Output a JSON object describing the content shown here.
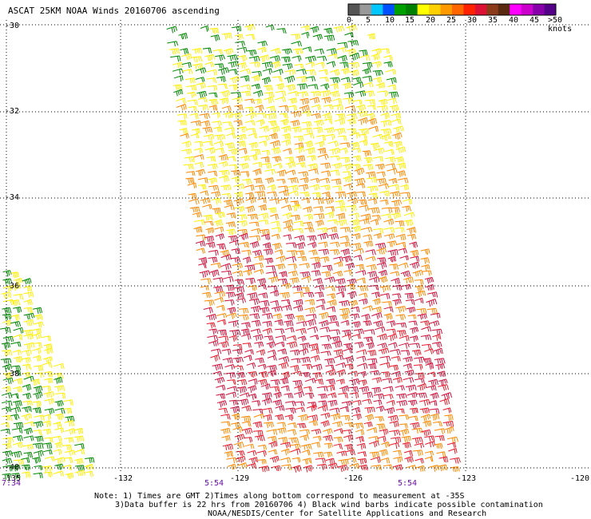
{
  "title": "ASCAT 25KM NOAA Winds 20160706 ascending",
  "legend": {
    "colors": [
      "#555555",
      "#999999",
      "#00c8ff",
      "#0050ff",
      "#00a000",
      "#008000",
      "#ffff00",
      "#ffd000",
      "#ff9900",
      "#ff6600",
      "#ff2200",
      "#dd1133",
      "#8b3a1a",
      "#5a2a10",
      "#ff00ff",
      "#cc00cc",
      "#8800aa",
      "#550088"
    ],
    "labels": [
      "0",
      "5",
      "10",
      "15",
      "20",
      "25",
      "30",
      "35",
      "40",
      "45",
      ">50 knots"
    ]
  },
  "map": {
    "lat_labels": [
      "-30",
      "-32",
      "-34",
      "-36",
      "-38",
      "-40"
    ],
    "lon_labels": [
      "-135",
      "-132",
      "-129",
      "-126",
      "-123",
      "-120"
    ],
    "time_labels": [
      "7:34",
      "5:54",
      "5:54"
    ]
  },
  "notes": [
    "Note: 1) Times are GMT 2)Times along bottom correspond to measurement at -35S",
    "3)Data buffer is 22 hrs from 20160706 4) Black wind barbs indicate possible contamination",
    "NOAA/NESDIS/Center for Satellite Applications and Research"
  ],
  "colors": {
    "green": "#008800",
    "yellow": "#ffee00",
    "orange": "#ff8800",
    "red": "#e81a2a",
    "crimson": "#d0103a",
    "grid": "#000000"
  }
}
